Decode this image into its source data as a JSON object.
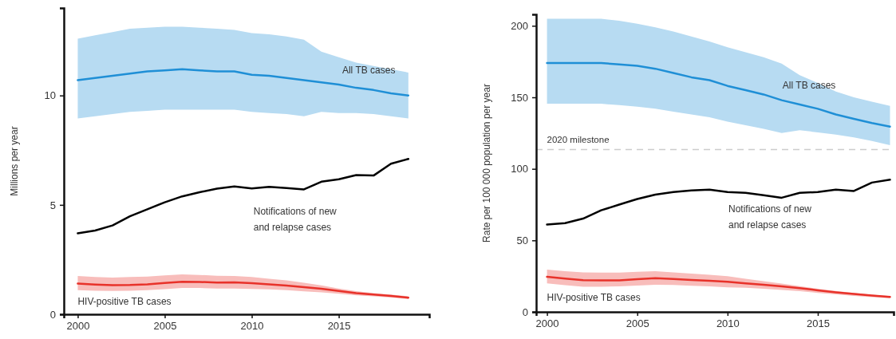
{
  "chart_data": [
    {
      "type": "line",
      "ylabel": "Millions per year",
      "x": [
        2000,
        2001,
        2002,
        2003,
        2004,
        2005,
        2006,
        2007,
        2008,
        2009,
        2010,
        2011,
        2012,
        2013,
        2014,
        2015,
        2016,
        2017,
        2018,
        2019
      ],
      "xlim": [
        1999.2,
        2020.2
      ],
      "xticks": [
        2000,
        2005,
        2010,
        2015
      ],
      "ylim": [
        0,
        14
      ],
      "yticks": [
        0,
        5,
        10
      ],
      "grid": false,
      "legend": false,
      "marker": "none",
      "line_style": "solid",
      "series": [
        {
          "name": "All TB cases",
          "color": "#1f8fd6",
          "values": [
            10.7,
            10.8,
            10.9,
            11.0,
            11.1,
            11.15,
            11.2,
            11.15,
            11.1,
            11.1,
            10.95,
            10.9,
            10.8,
            10.7,
            10.6,
            10.5,
            10.35,
            10.25,
            10.1,
            10.0
          ],
          "lower": [
            8.95,
            9.05,
            9.15,
            9.25,
            9.3,
            9.35,
            9.35,
            9.35,
            9.35,
            9.35,
            9.25,
            9.2,
            9.15,
            9.05,
            9.25,
            9.2,
            9.2,
            9.15,
            9.05,
            8.95
          ],
          "upper": [
            12.6,
            12.75,
            12.9,
            13.05,
            13.1,
            13.14,
            13.14,
            13.1,
            13.05,
            13.0,
            12.85,
            12.8,
            12.7,
            12.55,
            12.0,
            11.75,
            11.5,
            11.35,
            11.2,
            11.05
          ]
        },
        {
          "name": "Notifications of new and relapse cases",
          "color": "#000000",
          "values": [
            3.7,
            3.83,
            4.06,
            4.48,
            4.8,
            5.12,
            5.39,
            5.58,
            5.74,
            5.84,
            5.75,
            5.82,
            5.77,
            5.71,
            6.06,
            6.17,
            6.36,
            6.34,
            6.88,
            7.1
          ]
        },
        {
          "name": "HIV-positive TB cases",
          "color": "#e8322a",
          "values": [
            1.4,
            1.36,
            1.33,
            1.34,
            1.37,
            1.43,
            1.49,
            1.48,
            1.45,
            1.46,
            1.42,
            1.37,
            1.31,
            1.24,
            1.17,
            1.07,
            0.97,
            0.9,
            0.84,
            0.76
          ],
          "lower": [
            1.1,
            1.08,
            1.07,
            1.08,
            1.1,
            1.15,
            1.2,
            1.2,
            1.18,
            1.18,
            1.16,
            1.14,
            1.1,
            1.05,
            1.0,
            0.94,
            0.87,
            0.82,
            0.77,
            0.7
          ],
          "upper": [
            1.75,
            1.7,
            1.68,
            1.7,
            1.72,
            1.78,
            1.82,
            1.8,
            1.76,
            1.75,
            1.7,
            1.62,
            1.55,
            1.44,
            1.32,
            1.18,
            1.06,
            0.97,
            0.9,
            0.82
          ]
        }
      ]
    },
    {
      "type": "line",
      "ylabel": "Rate per 100 000 population per year",
      "x": [
        2000,
        2001,
        2002,
        2003,
        2004,
        2005,
        2006,
        2007,
        2008,
        2009,
        2010,
        2011,
        2012,
        2013,
        2014,
        2015,
        2016,
        2017,
        2018,
        2019
      ],
      "xlim": [
        1999.4,
        2019.2
      ],
      "xticks": [
        2000,
        2005,
        2010,
        2015
      ],
      "ylim": [
        0,
        208
      ],
      "yticks": [
        0,
        50,
        100,
        150,
        200
      ],
      "grid": false,
      "legend": false,
      "marker": "none",
      "line_style": "solid",
      "ref_lines": [
        {
          "axis": "y",
          "value": 113.5,
          "label": "2020 milestone",
          "color": "#cccccc",
          "line_style": "dashed"
        }
      ],
      "series": [
        {
          "name": "All TB cases",
          "color": "#1f8fd6",
          "values": [
            174,
            174,
            174,
            174,
            173,
            172,
            170,
            167,
            164,
            162,
            158,
            155,
            152,
            148,
            145,
            142,
            138,
            135,
            132,
            129.5
          ],
          "lower": [
            145.5,
            145.5,
            145.5,
            145.5,
            144.5,
            143.5,
            142,
            140,
            138,
            136,
            133,
            130.5,
            128,
            125,
            127,
            125.5,
            124,
            122,
            119.5,
            116.5
          ],
          "upper": [
            205,
            205,
            205,
            205,
            203.5,
            201.5,
            199,
            196,
            192.5,
            189,
            185,
            181.5,
            178,
            173.5,
            165.5,
            160,
            154,
            150,
            147,
            144
          ]
        },
        {
          "name": "Notifications of new and relapse cases",
          "color": "#000000",
          "values": [
            61,
            62,
            65.2,
            71,
            75,
            78.9,
            82,
            83.8,
            84.9,
            85.5,
            83.8,
            83.2,
            81.6,
            79.8,
            83.2,
            83.8,
            85.5,
            84.5,
            90.4,
            92.4
          ]
        },
        {
          "name": "HIV-positive TB cases",
          "color": "#e8322a",
          "values": [
            24.5,
            23.3,
            22.1,
            22,
            22,
            22.8,
            23.5,
            23,
            22.3,
            21.7,
            21,
            20,
            19,
            17.8,
            16.6,
            15.1,
            13.7,
            12.5,
            11.4,
            10.4
          ],
          "lower": [
            20,
            18.7,
            17.6,
            17.6,
            17.8,
            18.4,
            19,
            18.8,
            18.3,
            17.8,
            17.2,
            16.8,
            16.2,
            15.4,
            14.5,
            13.3,
            12.2,
            11.2,
            10.3,
            9.5
          ],
          "upper": [
            29.5,
            28.5,
            27.6,
            27.4,
            27.5,
            28,
            28.4,
            27.6,
            26.8,
            26,
            24.9,
            23.2,
            21.5,
            19.8,
            18,
            16.2,
            14.6,
            13.2,
            12,
            11
          ]
        }
      ]
    }
  ]
}
